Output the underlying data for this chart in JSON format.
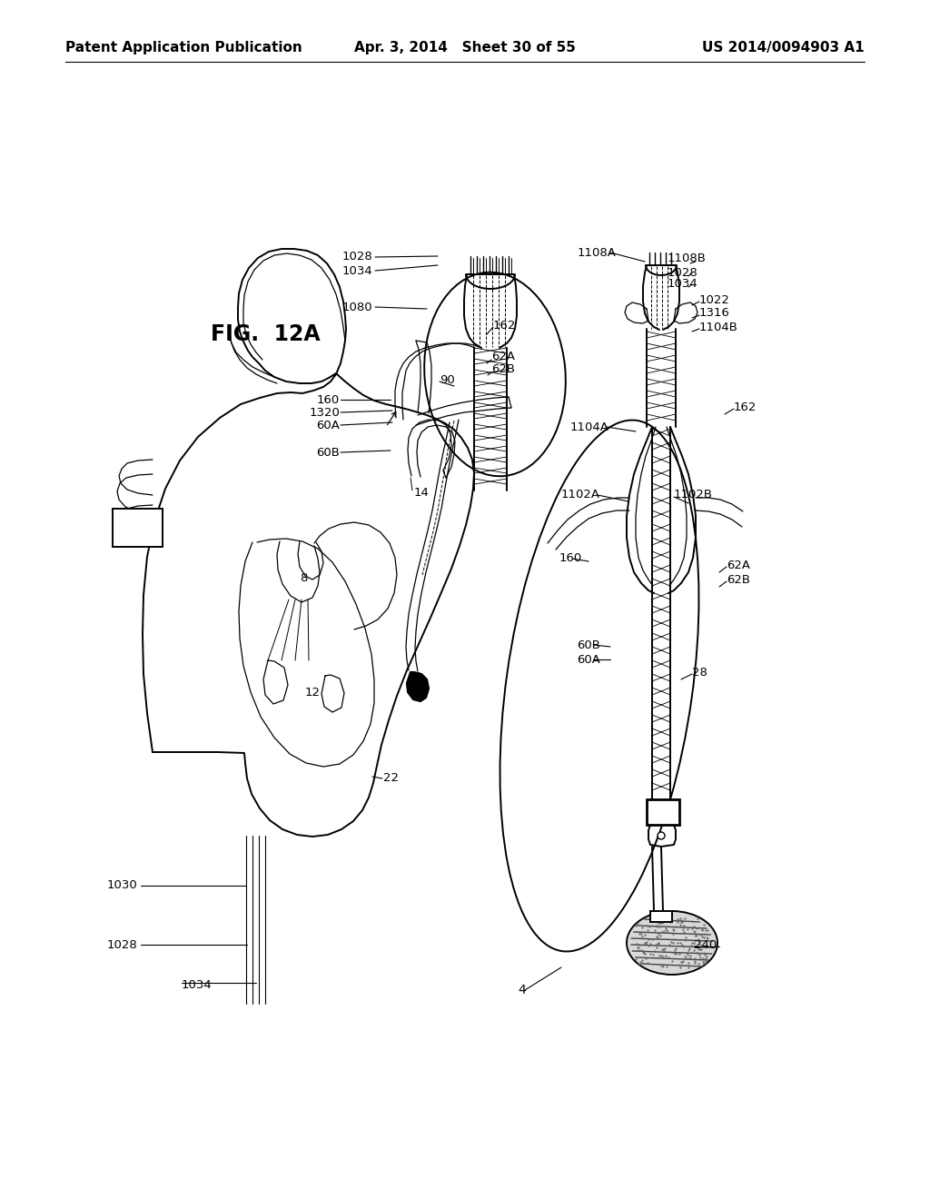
{
  "bg_color": "#ffffff",
  "line_color": "#000000",
  "title": "FIG.  12A",
  "header_left": "Patent Application Publication",
  "header_center": "Apr. 3, 2014   Sheet 30 of 55",
  "header_right": "US 2014/0094903 A1",
  "header_fontsize": 11,
  "title_fontsize": 17,
  "label_fontsize": 9.5,
  "fig_width": 10.24,
  "fig_height": 13.2,
  "dpi": 100
}
